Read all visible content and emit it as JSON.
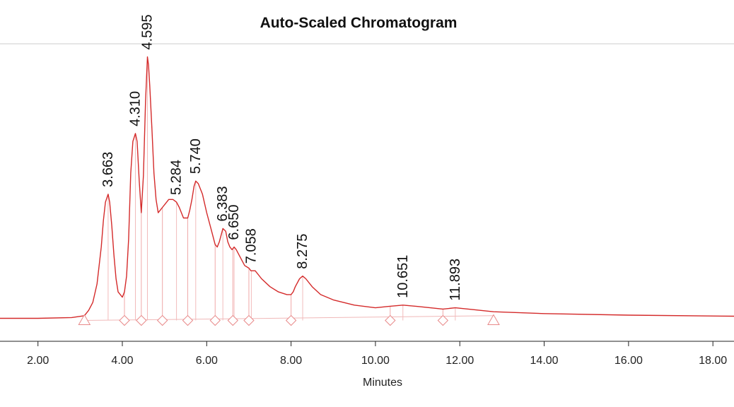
{
  "chart_data": {
    "type": "line",
    "title": "Auto-Scaled Chromatogram",
    "xlabel": "Minutes",
    "ylabel": "",
    "xlim": [
      1.1,
      18.5
    ],
    "ylim": [
      -0.02,
      1.01
    ],
    "x_ticks": [
      {
        "value": 2,
        "label": "2.00"
      },
      {
        "value": 4,
        "label": "4.00"
      },
      {
        "value": 6,
        "label": "6.00"
      },
      {
        "value": 8,
        "label": "8.00"
      },
      {
        "value": 10,
        "label": "10.00"
      },
      {
        "value": 12,
        "label": "12.00"
      },
      {
        "value": 14,
        "label": "14.00"
      },
      {
        "value": 16,
        "label": "16.00"
      },
      {
        "value": 18,
        "label": "18.00"
      }
    ],
    "grid": false,
    "series": [
      {
        "color": "#d42a2a",
        "x": [
          1.1,
          2.0,
          2.8,
          3.1,
          3.2,
          3.3,
          3.4,
          3.5,
          3.55,
          3.6,
          3.663,
          3.7,
          3.75,
          3.8,
          3.85,
          3.9,
          4.0,
          4.05,
          4.1,
          4.15,
          4.2,
          4.25,
          4.31,
          4.35,
          4.4,
          4.45,
          4.5,
          4.55,
          4.595,
          4.62,
          4.65,
          4.7,
          4.75,
          4.8,
          4.85,
          4.9,
          4.95,
          5.0,
          5.1,
          5.2,
          5.284,
          5.35,
          5.45,
          5.55,
          5.6,
          5.65,
          5.7,
          5.74,
          5.8,
          5.9,
          6.0,
          6.1,
          6.2,
          6.25,
          6.3,
          6.383,
          6.45,
          6.5,
          6.55,
          6.6,
          6.65,
          6.7,
          6.8,
          6.9,
          7.0,
          7.05,
          7.058,
          7.15,
          7.3,
          7.5,
          7.7,
          7.9,
          8.0,
          8.05,
          8.1,
          8.2,
          8.275,
          8.35,
          8.5,
          8.7,
          9.0,
          9.5,
          10.0,
          10.3,
          10.651,
          11.0,
          11.6,
          11.893,
          12.2,
          12.8,
          14.0,
          16.0,
          18.5
        ],
        "y": [
          0.0,
          0.0,
          0.003,
          0.01,
          0.03,
          0.06,
          0.13,
          0.27,
          0.37,
          0.44,
          0.47,
          0.44,
          0.35,
          0.24,
          0.15,
          0.1,
          0.08,
          0.1,
          0.16,
          0.3,
          0.55,
          0.67,
          0.7,
          0.67,
          0.52,
          0.4,
          0.54,
          0.82,
          0.99,
          0.96,
          0.88,
          0.72,
          0.55,
          0.45,
          0.4,
          0.41,
          0.42,
          0.43,
          0.45,
          0.45,
          0.44,
          0.42,
          0.38,
          0.38,
          0.41,
          0.45,
          0.5,
          0.52,
          0.51,
          0.47,
          0.4,
          0.34,
          0.28,
          0.27,
          0.29,
          0.34,
          0.33,
          0.29,
          0.27,
          0.26,
          0.27,
          0.26,
          0.23,
          0.2,
          0.19,
          0.18,
          0.18,
          0.18,
          0.15,
          0.12,
          0.1,
          0.09,
          0.09,
          0.1,
          0.12,
          0.15,
          0.16,
          0.15,
          0.12,
          0.09,
          0.07,
          0.05,
          0.04,
          0.045,
          0.05,
          0.045,
          0.035,
          0.04,
          0.035,
          0.025,
          0.018,
          0.012,
          0.008
        ]
      }
    ],
    "peaks": [
      {
        "rt": 3.663,
        "label": "3.663",
        "y": 0.47
      },
      {
        "rt": 4.31,
        "label": "4.310",
        "y": 0.7
      },
      {
        "rt": 4.595,
        "label": "4.595",
        "y": 0.99
      },
      {
        "rt": 5.284,
        "label": "5.284",
        "y": 0.44
      },
      {
        "rt": 5.74,
        "label": "5.740",
        "y": 0.52
      },
      {
        "rt": 6.383,
        "label": "6.383",
        "y": 0.34
      },
      {
        "rt": 6.65,
        "label": "6.650",
        "y": 0.27
      },
      {
        "rt": 7.058,
        "label": "7.058",
        "y": 0.18
      },
      {
        "rt": 8.275,
        "label": "8.275",
        "y": 0.16
      },
      {
        "rt": 10.651,
        "label": "10.651",
        "y": 0.05
      },
      {
        "rt": 11.893,
        "label": "11.893",
        "y": 0.04
      }
    ],
    "baseline": {
      "start": 3.1,
      "end": 12.8
    },
    "boundary_markers": [
      4.05,
      4.45,
      4.95,
      5.55,
      6.2,
      6.62,
      7.0,
      8.0,
      10.35,
      11.6
    ]
  }
}
